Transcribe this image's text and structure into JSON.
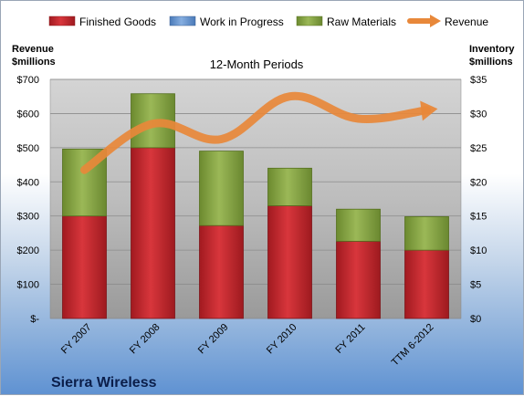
{
  "chart_data": {
    "type": "bar",
    "stacked": true,
    "title": "12-Month Periods",
    "company": "Sierra Wireless",
    "categories": [
      "FY 2007",
      "FY 2008",
      "FY 2009",
      "FY 2010",
      "FY 2011",
      "TTM 6-2012"
    ],
    "y_left": {
      "label_line1": "Revenue",
      "label_line2": "$millions",
      "ylim": [
        0,
        700
      ],
      "ticks": [
        0,
        100,
        200,
        300,
        400,
        500,
        600,
        700
      ],
      "tick_labels": [
        "$-",
        "$100",
        "$200",
        "$300",
        "$400",
        "$500",
        "$600",
        "$700"
      ]
    },
    "y_right": {
      "label_line1": "Inventory",
      "label_line2": "$millions",
      "ylim": [
        0,
        35
      ],
      "ticks": [
        0,
        5,
        10,
        15,
        20,
        25,
        30,
        35
      ],
      "tick_labels": [
        "$0",
        "$5",
        "$10",
        "$15",
        "$20",
        "$25",
        "$30",
        "$35"
      ]
    },
    "series": [
      {
        "name": "Finished Goods",
        "axis": "right",
        "kind": "bar",
        "color": "#c0272d",
        "values": [
          15.0,
          25.0,
          13.6,
          16.5,
          11.3,
          10.0
        ]
      },
      {
        "name": "Work in Progress",
        "axis": "right",
        "kind": "bar",
        "color": "#4f81bd",
        "values": [
          0,
          0,
          0,
          0,
          0,
          0
        ]
      },
      {
        "name": "Raw Materials",
        "axis": "right",
        "kind": "bar",
        "color": "#7d9a3a",
        "values": [
          9.8,
          7.9,
          10.9,
          5.5,
          4.7,
          4.9
        ]
      },
      {
        "name": "Revenue",
        "axis": "left",
        "kind": "line",
        "color": "#e8883a",
        "values": [
          435,
          570,
          525,
          650,
          585,
          610
        ]
      }
    ],
    "grid": true,
    "legend_position": "top"
  }
}
